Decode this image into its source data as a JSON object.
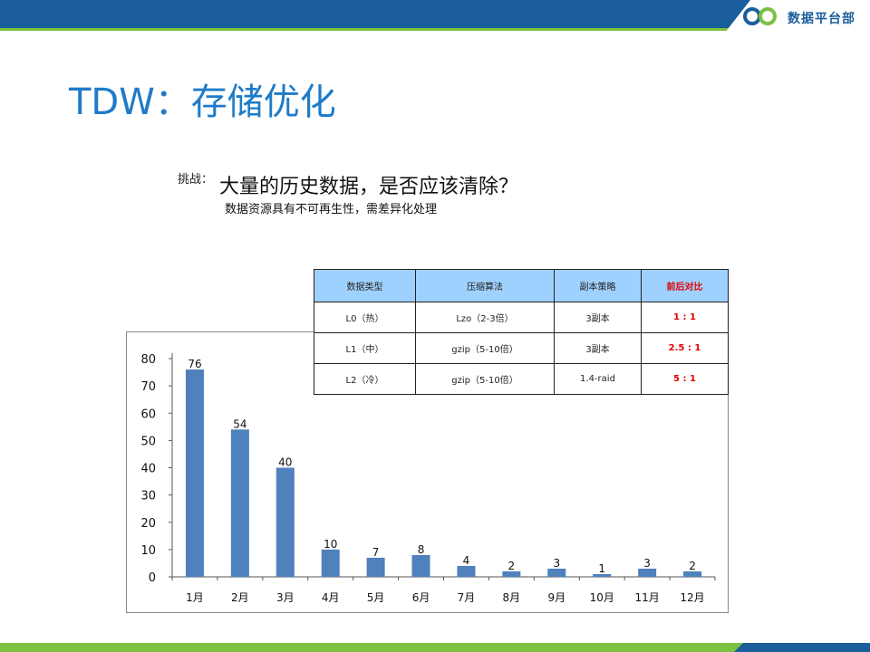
{
  "header": {
    "logo_icon": "infinity-logo-icon",
    "logo_text": "数据平台部",
    "colors": {
      "band": "#1a5e9c",
      "accent": "#7cc142"
    }
  },
  "title": "TDW：存储优化",
  "challenge": {
    "label": "挑战：",
    "main": "大量的历史数据，是否应该清除？",
    "sub": "数据资源具有不可再生性，需差异化处理"
  },
  "table": {
    "headers": [
      "数据类型",
      "压缩算法",
      "副本策略",
      "前后对比"
    ],
    "rows": [
      [
        "L0（热）",
        "Lzo（2-3倍）",
        "3副本",
        "1 : 1"
      ],
      [
        "L1（中）",
        "gzip（5-10倍）",
        "3副本",
        "2.5 : 1"
      ],
      [
        "L2（冷）",
        "gzip（5-10倍）",
        "1.4-raid",
        "5 : 1"
      ]
    ],
    "header_color": "#9fd1ff",
    "highlight_color": "#e00000"
  },
  "chart_data": {
    "type": "bar",
    "categories": [
      "1月",
      "2月",
      "3月",
      "4月",
      "5月",
      "6月",
      "7月",
      "8月",
      "9月",
      "10月",
      "11月",
      "12月"
    ],
    "values": [
      76,
      54,
      40,
      10,
      7,
      8,
      4,
      2,
      3,
      1,
      3,
      2
    ],
    "ylim": [
      0,
      80
    ],
    "yticks": [
      0,
      10,
      20,
      30,
      40,
      50,
      60,
      70,
      80
    ],
    "bar_color": "#4f81bd",
    "grid": false,
    "legend": "none"
  }
}
